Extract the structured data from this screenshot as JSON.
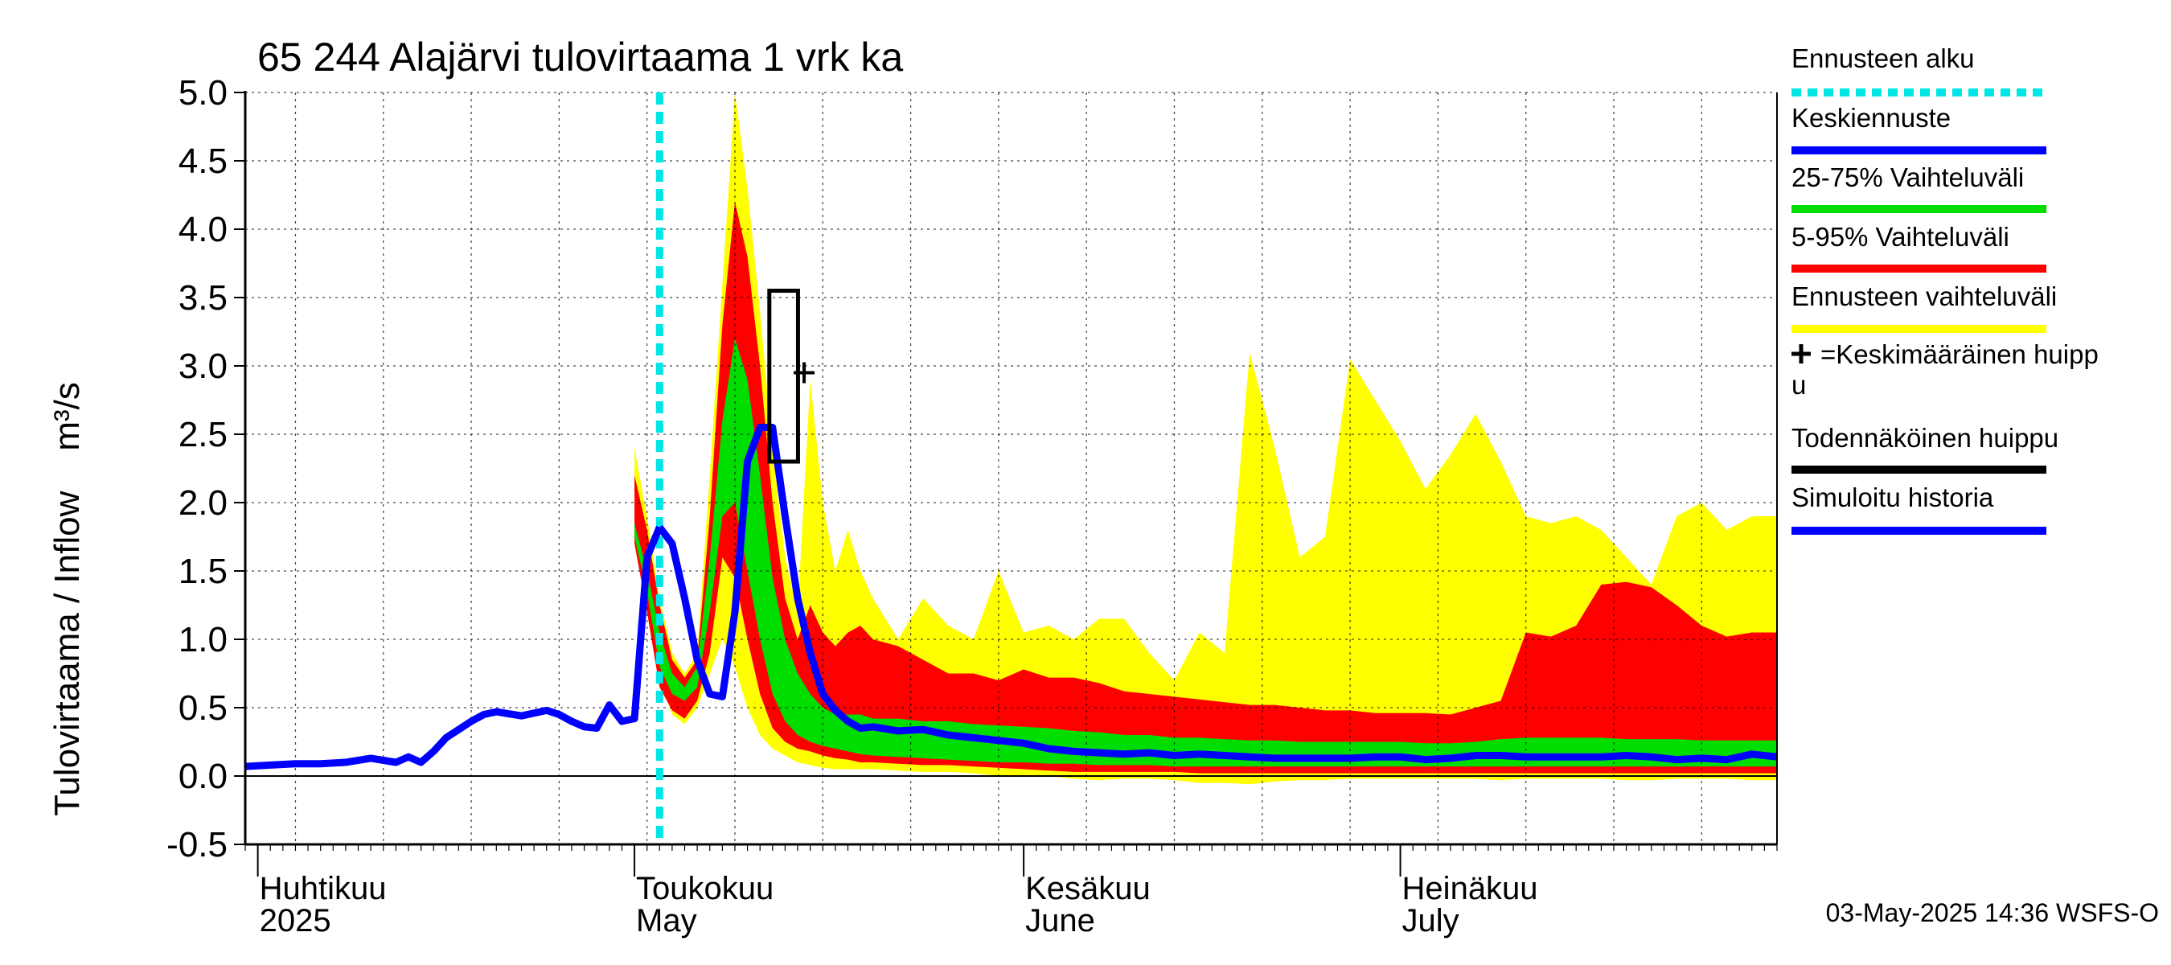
{
  "chart_data": {
    "type": "area",
    "title": "65 244 Alajärvi tulovirtaama 1 vrk ka",
    "ylabel_fi": "Tulovirtaama / Inflow",
    "ylabel_unit": "m³/s",
    "ylim": [
      -0.5,
      5.0
    ],
    "yticks": [
      -0.5,
      0.0,
      0.5,
      1.0,
      1.5,
      2.0,
      2.5,
      3.0,
      3.5,
      4.0,
      4.5,
      5.0
    ],
    "ytick_labels": [
      "-0.5",
      "0.0",
      "0.5",
      "1.0",
      "1.5",
      "2.0",
      "2.5",
      "3.0",
      "3.5",
      "4.0",
      "4.5",
      "5.0"
    ],
    "xlim": [
      "2025-03-31",
      "2025-07-31"
    ],
    "grid": true,
    "forecast_start": "2025-05-03",
    "month_labels": [
      {
        "date": "2025-04-01",
        "fi": "Huhtikuu",
        "en": "2025"
      },
      {
        "date": "2025-05-01",
        "fi": "Toukokuu",
        "en": "May"
      },
      {
        "date": "2025-06-01",
        "fi": "Kesäkuu",
        "en": "June"
      },
      {
        "date": "2025-07-01",
        "fi": "Heinäkuu",
        "en": "July"
      }
    ],
    "band_dates": [
      "2025-05-01",
      "2025-05-02",
      "2025-05-03",
      "2025-05-04",
      "2025-05-05",
      "2025-05-06",
      "2025-05-07",
      "2025-05-08",
      "2025-05-09",
      "2025-05-10",
      "2025-05-11",
      "2025-05-12",
      "2025-05-13",
      "2025-05-14",
      "2025-05-15",
      "2025-05-16",
      "2025-05-17",
      "2025-05-18",
      "2025-05-19",
      "2025-05-20",
      "2025-05-22",
      "2025-05-24",
      "2025-05-26",
      "2025-05-28",
      "2025-05-30",
      "2025-06-01",
      "2025-06-03",
      "2025-06-05",
      "2025-06-07",
      "2025-06-09",
      "2025-06-11",
      "2025-06-13",
      "2025-06-15",
      "2025-06-17",
      "2025-06-19",
      "2025-06-21",
      "2025-06-23",
      "2025-06-25",
      "2025-06-27",
      "2025-06-29",
      "2025-07-01",
      "2025-07-03",
      "2025-07-05",
      "2025-07-07",
      "2025-07-09",
      "2025-07-11",
      "2025-07-13",
      "2025-07-15",
      "2025-07-17",
      "2025-07-19",
      "2025-07-21",
      "2025-07-23",
      "2025-07-25",
      "2025-07-27",
      "2025-07-29",
      "2025-07-31"
    ],
    "series": [
      {
        "name": "Ennusteen vaihteluväli",
        "color": "#ffff00",
        "kind": "band",
        "upper": [
          2.4,
          1.9,
          1.3,
          0.9,
          0.75,
          0.9,
          2.2,
          3.6,
          5.0,
          4.3,
          3.4,
          2.4,
          1.6,
          1.2,
          2.9,
          2.0,
          1.5,
          1.8,
          1.5,
          1.3,
          1.0,
          1.3,
          1.1,
          1.0,
          1.5,
          1.05,
          1.1,
          1.0,
          1.15,
          1.15,
          0.9,
          0.7,
          1.05,
          0.9,
          3.1,
          2.4,
          1.6,
          1.75,
          3.05,
          2.75,
          2.45,
          2.1,
          2.35,
          2.65,
          2.3,
          1.9,
          1.85,
          1.9,
          1.8,
          1.6,
          1.4,
          1.9,
          2.0,
          1.8,
          1.9,
          1.9
        ],
        "lower": [
          1.8,
          1.3,
          0.7,
          0.45,
          0.38,
          0.5,
          0.75,
          1.0,
          0.8,
          0.5,
          0.3,
          0.2,
          0.15,
          0.1,
          0.08,
          0.06,
          0.05,
          0.05,
          0.05,
          0.05,
          0.04,
          0.03,
          0.03,
          0.02,
          0.0,
          0.0,
          0.0,
          -0.02,
          -0.03,
          -0.02,
          -0.02,
          -0.03,
          -0.05,
          -0.05,
          -0.06,
          -0.04,
          -0.03,
          -0.03,
          -0.02,
          -0.02,
          -0.02,
          -0.02,
          -0.02,
          -0.02,
          -0.03,
          -0.02,
          -0.02,
          -0.02,
          -0.02,
          -0.03,
          -0.03,
          -0.02,
          -0.02,
          -0.02,
          -0.03,
          -0.03
        ]
      },
      {
        "name": "5-95% Vaihteluväli",
        "color": "#ff0000",
        "kind": "band",
        "upper": [
          2.2,
          1.8,
          1.25,
          0.85,
          0.72,
          0.85,
          1.9,
          3.3,
          4.2,
          3.8,
          3.0,
          2.0,
          1.3,
          1.0,
          1.25,
          1.05,
          0.95,
          1.05,
          1.1,
          1.0,
          0.95,
          0.85,
          0.75,
          0.75,
          0.7,
          0.78,
          0.72,
          0.72,
          0.68,
          0.62,
          0.6,
          0.58,
          0.56,
          0.54,
          0.52,
          0.52,
          0.5,
          0.48,
          0.48,
          0.46,
          0.46,
          0.46,
          0.45,
          0.5,
          0.55,
          1.05,
          1.02,
          1.1,
          1.4,
          1.42,
          1.38,
          1.25,
          1.1,
          1.02,
          1.05,
          1.05
        ],
        "lower": [
          1.7,
          1.2,
          0.65,
          0.48,
          0.42,
          0.55,
          0.9,
          1.6,
          1.45,
          1.0,
          0.6,
          0.35,
          0.25,
          0.2,
          0.18,
          0.15,
          0.13,
          0.12,
          0.1,
          0.1,
          0.09,
          0.08,
          0.08,
          0.07,
          0.06,
          0.05,
          0.04,
          0.03,
          0.03,
          0.03,
          0.03,
          0.03,
          0.02,
          0.02,
          0.02,
          0.02,
          0.02,
          0.02,
          0.02,
          0.02,
          0.02,
          0.02,
          0.02,
          0.02,
          0.02,
          0.02,
          0.02,
          0.02,
          0.02,
          0.02,
          0.02,
          0.02,
          0.02,
          0.02,
          0.02,
          0.02
        ]
      },
      {
        "name": "25-75% Vaihteluväli",
        "color": "#00dd00",
        "kind": "band",
        "upper": [
          1.85,
          1.5,
          1.05,
          0.75,
          0.65,
          0.8,
          1.6,
          2.6,
          3.2,
          2.9,
          2.2,
          1.45,
          1.0,
          0.75,
          0.6,
          0.5,
          0.45,
          0.45,
          0.45,
          0.42,
          0.42,
          0.4,
          0.4,
          0.38,
          0.37,
          0.36,
          0.35,
          0.33,
          0.32,
          0.3,
          0.3,
          0.28,
          0.28,
          0.27,
          0.26,
          0.26,
          0.25,
          0.25,
          0.25,
          0.25,
          0.25,
          0.24,
          0.24,
          0.25,
          0.27,
          0.28,
          0.28,
          0.28,
          0.28,
          0.27,
          0.27,
          0.27,
          0.26,
          0.26,
          0.26,
          0.26
        ],
        "lower": [
          1.75,
          1.35,
          0.8,
          0.6,
          0.55,
          0.65,
          1.2,
          1.9,
          2.0,
          1.5,
          1.0,
          0.6,
          0.4,
          0.3,
          0.25,
          0.22,
          0.2,
          0.18,
          0.16,
          0.15,
          0.14,
          0.13,
          0.12,
          0.11,
          0.1,
          0.1,
          0.09,
          0.09,
          0.08,
          0.08,
          0.08,
          0.07,
          0.07,
          0.07,
          0.07,
          0.07,
          0.07,
          0.07,
          0.07,
          0.07,
          0.07,
          0.07,
          0.07,
          0.07,
          0.07,
          0.07,
          0.07,
          0.07,
          0.07,
          0.07,
          0.07,
          0.07,
          0.07,
          0.07,
          0.07,
          0.07
        ]
      }
    ],
    "history": {
      "name": "Simuloitu historia",
      "color": "#0000ff",
      "x": [
        "2025-03-31",
        "2025-04-02",
        "2025-04-04",
        "2025-04-06",
        "2025-04-08",
        "2025-04-10",
        "2025-04-12",
        "2025-04-13",
        "2025-04-14",
        "2025-04-15",
        "2025-04-16",
        "2025-04-17",
        "2025-04-18",
        "2025-04-19",
        "2025-04-20",
        "2025-04-22",
        "2025-04-24",
        "2025-04-25",
        "2025-04-26",
        "2025-04-27",
        "2025-04-28",
        "2025-04-29",
        "2025-04-30",
        "2025-05-01",
        "2025-05-02"
      ],
      "y": [
        0.07,
        0.08,
        0.09,
        0.09,
        0.1,
        0.13,
        0.1,
        0.14,
        0.1,
        0.18,
        0.28,
        0.34,
        0.4,
        0.45,
        0.47,
        0.44,
        0.48,
        0.45,
        0.4,
        0.36,
        0.35,
        0.52,
        0.4,
        0.42,
        1.6
      ]
    },
    "median": {
      "name": "Keskiennuste",
      "color": "#0000ff",
      "x": [
        "2025-05-03",
        "2025-05-04",
        "2025-05-05",
        "2025-05-06",
        "2025-05-07",
        "2025-05-08",
        "2025-05-09",
        "2025-05-10",
        "2025-05-11",
        "2025-05-12",
        "2025-05-13",
        "2025-05-14",
        "2025-05-15",
        "2025-05-16",
        "2025-05-17",
        "2025-05-18",
        "2025-05-19",
        "2025-05-20",
        "2025-05-22",
        "2025-05-24",
        "2025-05-26",
        "2025-05-28",
        "2025-05-30",
        "2025-06-01",
        "2025-06-03",
        "2025-06-05",
        "2025-06-07",
        "2025-06-09",
        "2025-06-11",
        "2025-06-13",
        "2025-06-15",
        "2025-06-17",
        "2025-06-19",
        "2025-06-21",
        "2025-06-23",
        "2025-06-25",
        "2025-06-27",
        "2025-06-29",
        "2025-07-01",
        "2025-07-03",
        "2025-07-05",
        "2025-07-07",
        "2025-07-09",
        "2025-07-11",
        "2025-07-13",
        "2025-07-15",
        "2025-07-17",
        "2025-07-19",
        "2025-07-21",
        "2025-07-23",
        "2025-07-25",
        "2025-07-27",
        "2025-07-29",
        "2025-07-31"
      ],
      "y": [
        1.82,
        1.7,
        1.3,
        0.85,
        0.6,
        0.58,
        1.2,
        2.3,
        2.55,
        2.55,
        1.9,
        1.3,
        0.9,
        0.6,
        0.48,
        0.4,
        0.35,
        0.36,
        0.33,
        0.34,
        0.3,
        0.28,
        0.26,
        0.24,
        0.2,
        0.18,
        0.17,
        0.16,
        0.17,
        0.15,
        0.16,
        0.15,
        0.14,
        0.13,
        0.13,
        0.13,
        0.13,
        0.14,
        0.14,
        0.12,
        0.13,
        0.15,
        0.15,
        0.14,
        0.14,
        0.14,
        0.14,
        0.15,
        0.14,
        0.12,
        0.13,
        0.12,
        0.16,
        0.14
      ]
    },
    "mean_peak": {
      "name": "=Keskimääräinen huippu",
      "x": "2025-05-14",
      "y": 2.95
    },
    "probable_peak": {
      "name": "Todennäköinen huippu",
      "x_start": "2025-05-12",
      "x_end": "2025-05-13",
      "y_low": 2.3,
      "y_high": 3.55
    }
  },
  "legend": [
    {
      "label": "Ennusteen alku",
      "color": "#00e5e5",
      "style": "dotted"
    },
    {
      "label": "Keskiennuste",
      "color": "#0000ff",
      "style": "solid"
    },
    {
      "label": "25-75% Vaihteluväli",
      "color": "#00dd00",
      "style": "solid"
    },
    {
      "label": "5-95% Vaihteluväli",
      "color": "#ff0000",
      "style": "solid"
    },
    {
      "label": "Ennusteen vaihteluväli",
      "color": "#ffff00",
      "style": "solid"
    },
    {
      "label": "=Keskimääräinen huipp",
      "label2": "u",
      "color": "#000000",
      "style": "cross"
    },
    {
      "label": "Todennäköinen huippu",
      "color": "#000000",
      "style": "solid"
    },
    {
      "label": "Simuloitu historia",
      "color": "#0000ff",
      "style": "solid"
    }
  ],
  "timestamp": "03-May-2025 14:36 WSFS-O"
}
